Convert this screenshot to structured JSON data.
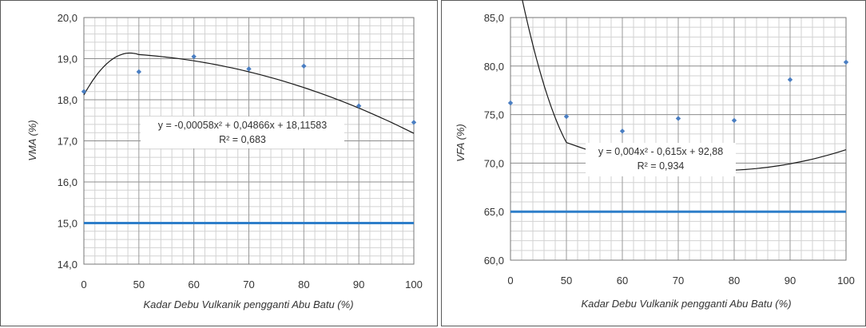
{
  "chart_data": [
    {
      "type": "scatter",
      "ylabel": "VMA (%)",
      "xlabel": "Kadar Debu Vulkanik pengganti Abu Batu (%)",
      "x_ticks": [
        "0",
        "50",
        "60",
        "70",
        "80",
        "90",
        "100"
      ],
      "y_ticks": [
        "14,0",
        "15,0",
        "16,0",
        "17,0",
        "18,0",
        "19,0",
        "20,0"
      ],
      "ylim": [
        14,
        20
      ],
      "grid": true,
      "points": [
        {
          "x": "0",
          "y": 18.2
        },
        {
          "x": "50",
          "y": 18.68
        },
        {
          "x": "60",
          "y": 19.05
        },
        {
          "x": "70",
          "y": 18.75
        },
        {
          "x": "80",
          "y": 18.82
        },
        {
          "x": "90",
          "y": 17.85
        },
        {
          "x": "100",
          "y": 17.45
        }
      ],
      "trendline": {
        "type": "polynomial",
        "coefficients": [
          -0.00058,
          0.04866,
          18.11583
        ]
      },
      "reference_line": {
        "y": 15.0,
        "color": "#2e7ec9"
      },
      "equation": "y = -0,00058x² + 0,04866x + 18,11583",
      "r2": "R² = 0,683",
      "point_color": "#4a7ec2"
    },
    {
      "type": "scatter",
      "ylabel": "VFA (%)",
      "xlabel": "Kadar Debu Vulkanik pengganti Abu Batu (%)",
      "x_ticks": [
        "0",
        "50",
        "60",
        "70",
        "80",
        "90",
        "100"
      ],
      "y_ticks": [
        "60,0",
        "65,0",
        "70,0",
        "75,0",
        "80,0",
        "85,0"
      ],
      "ylim": [
        60,
        85
      ],
      "grid": true,
      "points": [
        {
          "x": "0",
          "y": 76.2
        },
        {
          "x": "50",
          "y": 74.8
        },
        {
          "x": "60",
          "y": 73.3
        },
        {
          "x": "70",
          "y": 74.6
        },
        {
          "x": "80",
          "y": 74.4
        },
        {
          "x": "90",
          "y": 78.6
        },
        {
          "x": "100",
          "y": 80.4
        }
      ],
      "trendline": {
        "type": "polynomial",
        "coefficients": [
          0.004,
          -0.615,
          92.88
        ]
      },
      "reference_line": {
        "y": 65.0,
        "color": "#2e7ec9"
      },
      "equation": "y = 0,004x² - 0,615x + 92,88",
      "r2": "R² = 0,934",
      "point_color": "#4a7ec2"
    }
  ]
}
